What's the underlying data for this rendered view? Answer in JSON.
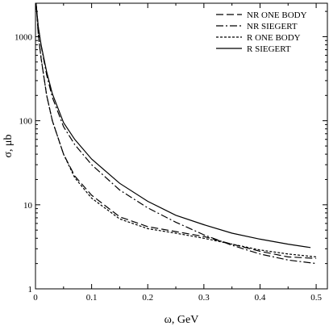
{
  "chart_data": {
    "type": "line",
    "title": "",
    "xlabel": "ω, GeV",
    "ylabel": "σ, μb",
    "xlim": [
      0,
      0.52
    ],
    "ylim": [
      1,
      2500
    ],
    "yscale": "log",
    "grid": false,
    "legend_position": "top-right",
    "x_ticks": [
      0,
      0.1,
      0.2,
      0.3,
      0.4,
      0.5
    ],
    "x_tick_labels": [
      "0",
      "0.1",
      "0.2",
      "0.3",
      "0.4",
      "0.5"
    ],
    "y_ticks": [
      1,
      10,
      100,
      1000
    ],
    "y_tick_labels": [
      "1",
      "10",
      "100",
      "1000"
    ],
    "series": [
      {
        "name": "NR ONE BODY",
        "dash": "long-dash",
        "x": [
          0.001,
          0.003,
          0.005,
          0.01,
          0.02,
          0.03,
          0.05,
          0.07,
          0.1,
          0.15,
          0.2,
          0.25,
          0.3,
          0.35,
          0.4,
          0.45,
          0.5
        ],
        "y": [
          2500,
          1700,
          1050,
          550,
          200,
          100,
          40,
          22,
          13,
          7.2,
          5.5,
          4.8,
          4.2,
          3.4,
          2.8,
          2.4,
          2.3
        ]
      },
      {
        "name": "NR SIEGERT",
        "dash": "dash-dot",
        "x": [
          0.001,
          0.003,
          0.005,
          0.01,
          0.02,
          0.03,
          0.05,
          0.07,
          0.1,
          0.15,
          0.2,
          0.25,
          0.3,
          0.35,
          0.4,
          0.45,
          0.5
        ],
        "y": [
          2500,
          1800,
          1300,
          780,
          350,
          190,
          85,
          52,
          30,
          15,
          9.2,
          6.2,
          4.4,
          3.3,
          2.6,
          2.2,
          2.0
        ]
      },
      {
        "name": "R ONE BODY",
        "dash": "dotted",
        "x": [
          0.001,
          0.003,
          0.005,
          0.01,
          0.02,
          0.03,
          0.05,
          0.07,
          0.1,
          0.15,
          0.2,
          0.25,
          0.3,
          0.35,
          0.4,
          0.45,
          0.5
        ],
        "y": [
          2500,
          1700,
          1050,
          550,
          200,
          100,
          40,
          21,
          12,
          6.8,
          5.2,
          4.6,
          4.0,
          3.4,
          2.9,
          2.6,
          2.4
        ]
      },
      {
        "name": "R SIEGERT",
        "dash": "solid",
        "x": [
          0.001,
          0.003,
          0.005,
          0.01,
          0.02,
          0.03,
          0.05,
          0.07,
          0.1,
          0.15,
          0.2,
          0.25,
          0.3,
          0.35,
          0.4,
          0.45,
          0.49
        ],
        "y": [
          2500,
          1800,
          1300,
          800,
          380,
          210,
          95,
          60,
          35,
          18,
          11,
          7.5,
          5.8,
          4.6,
          3.9,
          3.4,
          3.1
        ]
      }
    ]
  }
}
